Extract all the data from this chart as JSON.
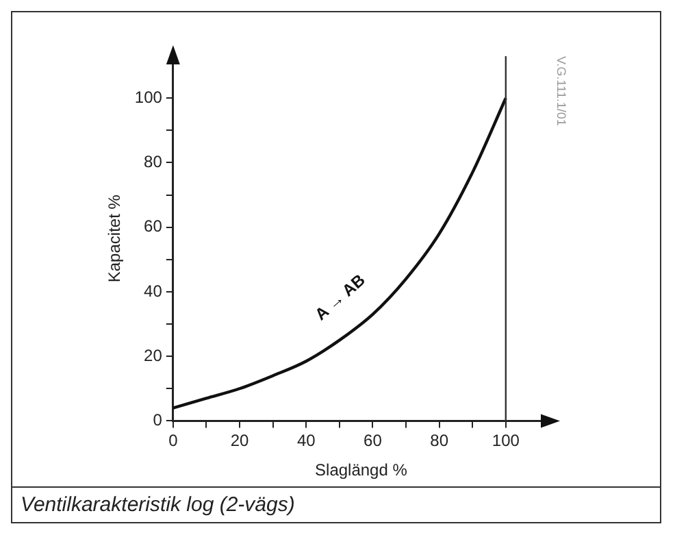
{
  "chart_data": {
    "type": "line",
    "title": "Ventilkarakteristik log (2-vägs)",
    "xlabel": "Slaglängd %",
    "ylabel": "Kapacitet %",
    "x": [
      0,
      10,
      20,
      30,
      40,
      50,
      60,
      70,
      80,
      90,
      100
    ],
    "series": [
      {
        "color": "#111111",
        "values": [
          4,
          7,
          10,
          14,
          18.5,
          25,
          33,
          44,
          58,
          77,
          100
        ]
      }
    ],
    "xlim": [
      0,
      113
    ],
    "ylim": [
      0,
      113
    ],
    "xticks": [
      0,
      {
        "value": 10,
        "label": null
      },
      20,
      {
        "value": 30,
        "label": null
      },
      40,
      {
        "value": 50,
        "label": null
      },
      60,
      {
        "value": 70,
        "label": null
      },
      80,
      {
        "value": 90,
        "label": null
      },
      100
    ],
    "yticks": [
      0,
      {
        "value": 10,
        "label": null
      },
      20,
      {
        "value": 30,
        "label": null
      },
      40,
      {
        "value": 50,
        "label": null
      },
      60,
      {
        "value": 70,
        "label": null
      },
      80,
      {
        "value": 90,
        "label": null
      },
      100
    ],
    "ref_lines": [
      {
        "axis": "x",
        "value": 100,
        "label": null,
        "color": "#333333"
      }
    ],
    "annotations": [
      "A → AB",
      "V.G.111.1/01"
    ],
    "grid": false,
    "legend": false,
    "marker": "none",
    "line_style": "solid"
  }
}
